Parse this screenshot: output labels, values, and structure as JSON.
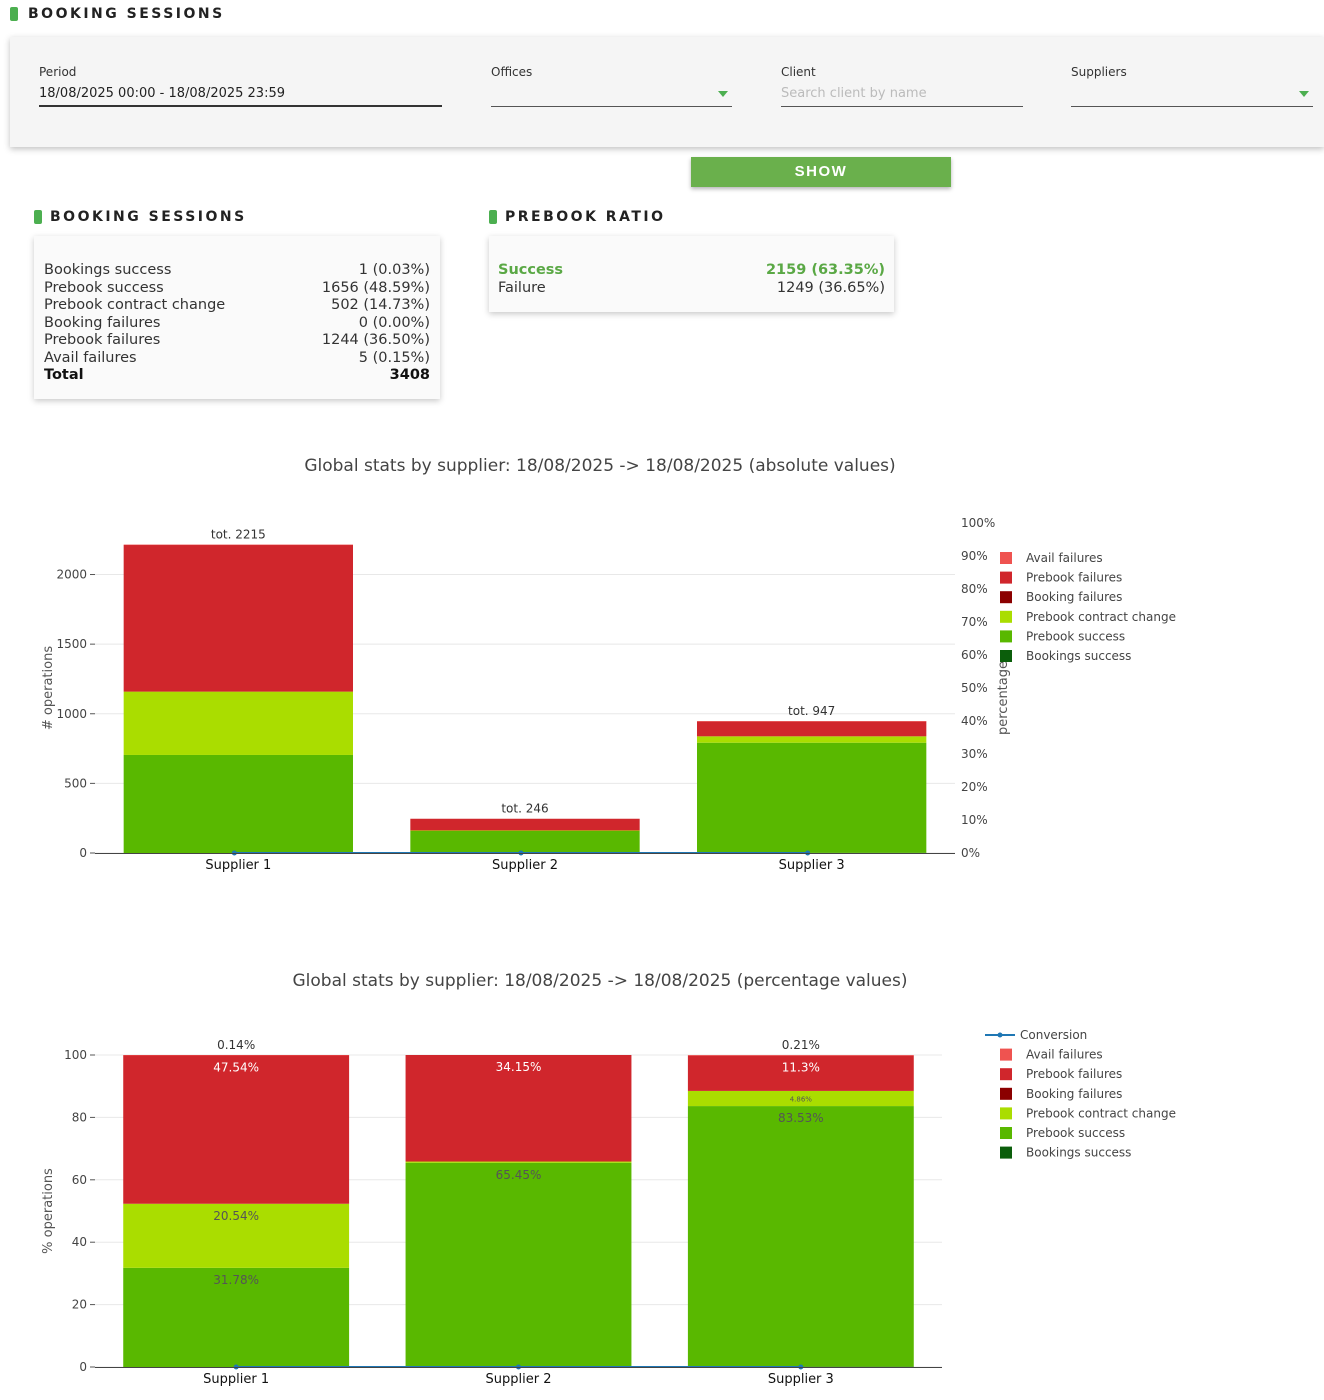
{
  "page_title": "BOOKING SESSIONS",
  "filters": {
    "period_label": "Period",
    "period_value": "18/08/2025 00:00 - 18/08/2025 23:59",
    "offices_label": "Offices",
    "offices_value": "",
    "client_label": "Client",
    "client_placeholder": "Search client by name",
    "suppliers_label": "Suppliers",
    "suppliers_value": "",
    "show_label": "SHOW"
  },
  "booking_sessions": {
    "title": "BOOKING SESSIONS",
    "rows": [
      {
        "label": "Bookings success",
        "value": "1 (0.03%)"
      },
      {
        "label": "Prebook success",
        "value": "1656 (48.59%)"
      },
      {
        "label": "Prebook contract change",
        "value": "502 (14.73%)"
      },
      {
        "label": "Booking failures",
        "value": "0 (0.00%)"
      },
      {
        "label": "Prebook failures",
        "value": "1244 (36.50%)"
      },
      {
        "label": "Avail failures",
        "value": "5 (0.15%)"
      }
    ],
    "total_label": "Total",
    "total_value": "3408"
  },
  "prebook_ratio": {
    "title": "PREBOOK RATIO",
    "success_label": "Success",
    "success_value": "2159 (63.35%)",
    "failure_label": "Failure",
    "failure_value": "1249 (36.65%)"
  },
  "colors": {
    "avail_failures": "#ef5350",
    "prebook_failures": "#d0262c",
    "booking_failures": "#8b0000",
    "prebook_contract_change": "#aadd00",
    "prebook_success": "#59b800",
    "bookings_success": "#0b5e0b",
    "conversion": "#1f77b4",
    "accent": "#4caf50"
  },
  "chart_data": [
    {
      "type": "bar",
      "title": "Global stats by supplier: 18/08/2025 -> 18/08/2025 (absolute values)",
      "ylabel": "# operations",
      "y2label": "percentage",
      "ylim": [
        0,
        2370
      ],
      "yticks": [
        "0",
        "500",
        "1000",
        "1500",
        "2000"
      ],
      "y2ticks": [
        "0%",
        "10%",
        "20%",
        "30%",
        "40%",
        "50%",
        "60%",
        "70%",
        "80%",
        "90%",
        "100%"
      ],
      "categories": [
        "Supplier 1",
        "Supplier 2",
        "Supplier 3"
      ],
      "series": [
        {
          "name": "Bookings success",
          "values": [
            0,
            0,
            1
          ]
        },
        {
          "name": "Prebook success",
          "values": [
            704,
            161,
            791
          ]
        },
        {
          "name": "Prebook contract change",
          "values": [
            455,
            1,
            46
          ]
        },
        {
          "name": "Booking failures",
          "values": [
            0,
            0,
            0
          ]
        },
        {
          "name": "Prebook failures",
          "values": [
            1053,
            84,
            107
          ]
        },
        {
          "name": "Avail failures",
          "values": [
            3,
            0,
            2
          ]
        }
      ],
      "totals": [
        "tot. 2215",
        "tot. 246",
        "tot. 947"
      ],
      "legend": [
        "Avail failures",
        "Prebook failures",
        "Booking failures",
        "Prebook contract change",
        "Prebook success",
        "Bookings success"
      ]
    },
    {
      "type": "bar",
      "title": "Global stats by supplier: 18/08/2025 -> 18/08/2025 (percentage values)",
      "ylabel": "% operations",
      "ylim": [
        0,
        100
      ],
      "yticks": [
        "0",
        "20",
        "40",
        "60",
        "80",
        "100"
      ],
      "categories": [
        "Supplier 1",
        "Supplier 2",
        "Supplier 3"
      ],
      "series": [
        {
          "name": "Bookings success",
          "values": [
            0,
            0,
            0.1
          ]
        },
        {
          "name": "Prebook success",
          "values": [
            31.78,
            65.45,
            83.53
          ]
        },
        {
          "name": "Prebook contract change",
          "values": [
            20.54,
            0.4,
            4.86
          ]
        },
        {
          "name": "Booking failures",
          "values": [
            0,
            0,
            0
          ]
        },
        {
          "name": "Prebook failures",
          "values": [
            47.54,
            34.15,
            11.3
          ]
        },
        {
          "name": "Avail failures",
          "values": [
            0.14,
            0,
            0.21
          ]
        }
      ],
      "labels": {
        "Prebook success": [
          "31.78%",
          "65.45%",
          "83.53%"
        ],
        "Prebook contract change": [
          "20.54%",
          "",
          "4.86%"
        ],
        "Prebook failures": [
          "47.54%",
          "34.15%",
          "11.3%"
        ],
        "Avail failures": [
          "0.14%",
          "",
          "0.21%"
        ]
      },
      "legend": [
        "Conversion",
        "Avail failures",
        "Prebook failures",
        "Booking failures",
        "Prebook contract change",
        "Prebook success",
        "Bookings success"
      ]
    }
  ]
}
